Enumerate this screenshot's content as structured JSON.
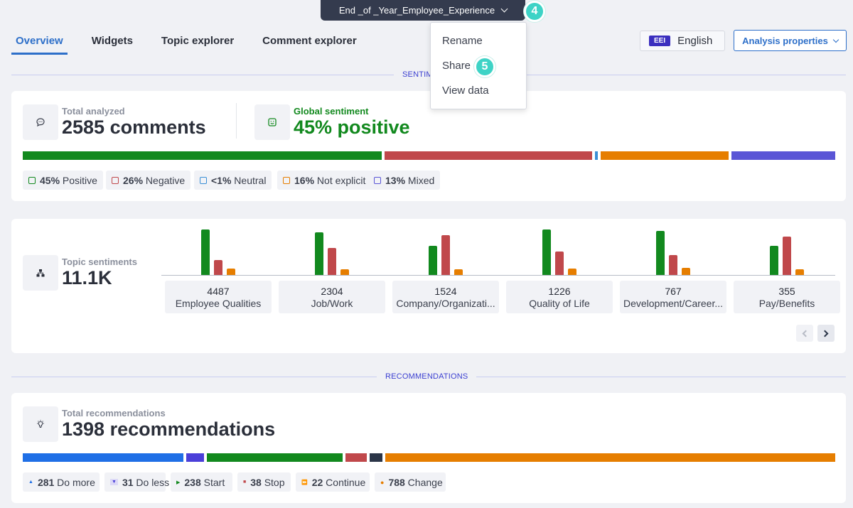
{
  "header": {
    "project_title": "End _of _Year_Employee_Experience",
    "step_4": "4",
    "step_5": "5"
  },
  "menu": {
    "items": [
      {
        "label": "Rename"
      },
      {
        "label": "Share"
      },
      {
        "label": "View data"
      }
    ]
  },
  "tabs": [
    {
      "label": "Overview",
      "active": true
    },
    {
      "label": "Widgets"
    },
    {
      "label": "Topic explorer"
    },
    {
      "label": "Comment explorer"
    }
  ],
  "language": {
    "badge": "EEI",
    "label": "English"
  },
  "analysis_button": "Analysis properties",
  "sections": {
    "sentiment": "SENTIM",
    "recommendations": "RECOMMENDATIONS"
  },
  "sentiment_card": {
    "total_label": "Total analyzed",
    "total_value": "2585 comments",
    "global_label": "Global sentiment",
    "global_value": "45% positive",
    "colors": {
      "positive": "#12891e",
      "negative": "#c0484b",
      "neutral": "#3a8fd6",
      "not_explicit": "#e67e00",
      "mixed": "#5a55d6"
    },
    "distribution": [
      {
        "key": "positive",
        "value": 45,
        "pct": "45%",
        "label": "Positive"
      },
      {
        "key": "negative",
        "value": 26,
        "pct": "26%",
        "label": "Negative"
      },
      {
        "key": "neutral",
        "value": 0.4,
        "pct": "<1%",
        "label": "Neutral"
      },
      {
        "key": "not_explicit",
        "value": 16,
        "pct": "16%",
        "label": "Not explicit"
      },
      {
        "key": "mixed",
        "value": 13,
        "pct": "13%",
        "label": "Mixed"
      }
    ]
  },
  "topic_card": {
    "label": "Topic sentiments",
    "value": "11.1K",
    "topics": [
      {
        "count": "4487",
        "name": "Employee Qualities",
        "pos": 64,
        "neg": 21,
        "nex": 9
      },
      {
        "count": "2304",
        "name": "Job/Work",
        "pos": 60,
        "neg": 38,
        "nex": 8
      },
      {
        "count": "1524",
        "name": "Company/Organizati...",
        "pos": 41,
        "neg": 56,
        "nex": 8
      },
      {
        "count": "1226",
        "name": "Quality of Life",
        "pos": 64,
        "neg": 33,
        "nex": 9
      },
      {
        "count": "767",
        "name": "Development/Career...",
        "pos": 62,
        "neg": 28,
        "nex": 10
      },
      {
        "count": "355",
        "name": "Pay/Benefits",
        "pos": 41,
        "neg": 54,
        "nex": 8
      }
    ]
  },
  "recommendations_card": {
    "total_label": "Total recommendations",
    "total_value": "1398 recommendations",
    "items": [
      {
        "count": "281",
        "label": "Do more",
        "value": 281,
        "color": "#1f6fe6",
        "icon": "triangle-up-icon"
      },
      {
        "count": "31",
        "label": "Do less",
        "value": 31,
        "color": "#4b3fd9",
        "icon": "triangle-down-icon"
      },
      {
        "count": "238",
        "label": "Start",
        "value": 238,
        "color": "#12891e",
        "icon": "play-icon"
      },
      {
        "count": "38",
        "label": "Stop",
        "value": 38,
        "color": "#c0484b",
        "icon": "stop-icon"
      },
      {
        "count": "22",
        "label": "Continue",
        "value": 22,
        "color": "#2b3548",
        "icon": "fast-forward-icon"
      },
      {
        "count": "788",
        "label": "Change",
        "value": 788,
        "color": "#e67e00",
        "icon": "dot-icon"
      }
    ]
  }
}
